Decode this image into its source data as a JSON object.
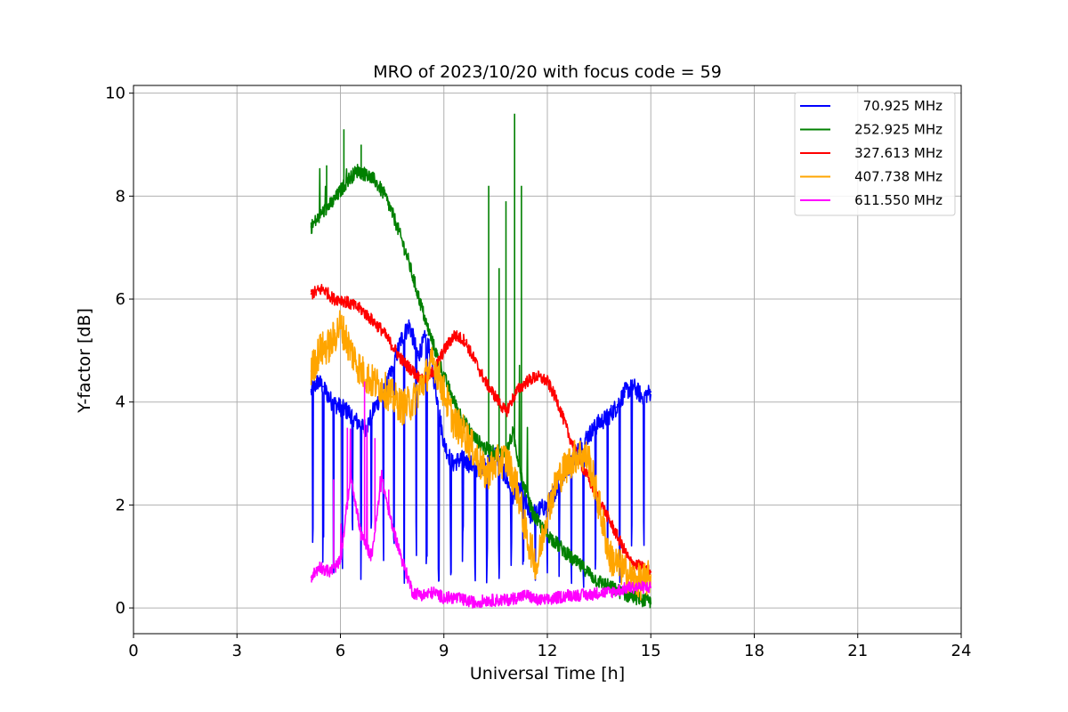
{
  "chart_data": {
    "type": "line",
    "title": "MRO of 2023/10/20 with focus code = 59",
    "xlabel": "Universal Time [h]",
    "ylabel": "Y-factor [dB]",
    "xlim": [
      0,
      24
    ],
    "ylim": [
      -0.5,
      10.15
    ],
    "xticks": [
      0,
      3,
      6,
      9,
      12,
      15,
      18,
      21,
      24
    ],
    "yticks": [
      0,
      2,
      4,
      6,
      8,
      10
    ],
    "grid": true,
    "legend_position": "top-right",
    "series": [
      {
        "name": "70.925 MHz",
        "color": "#0000ff",
        "x": [
          5.15,
          5.35,
          5.5,
          5.75,
          6.0,
          6.25,
          6.5,
          6.75,
          7.0,
          7.25,
          7.5,
          7.75,
          8.0,
          8.25,
          8.5,
          8.75,
          9.0,
          9.25,
          9.5,
          9.75,
          10.0,
          10.25,
          10.5,
          10.75,
          11.0,
          11.25,
          11.5,
          11.75,
          12.0,
          12.25,
          12.5,
          12.75,
          13.0,
          13.25,
          13.5,
          13.75,
          14.0,
          14.25,
          14.5,
          14.75,
          15.0
        ],
        "values": [
          4.2,
          4.4,
          4.3,
          4.0,
          3.9,
          3.8,
          3.6,
          3.5,
          3.9,
          4.2,
          4.6,
          5.2,
          5.5,
          4.9,
          5.3,
          4.3,
          3.2,
          2.8,
          2.9,
          2.8,
          2.7,
          2.8,
          3.0,
          2.6,
          2.2,
          2.3,
          1.8,
          1.9,
          2.0,
          2.3,
          2.6,
          2.9,
          3.2,
          3.4,
          3.6,
          3.7,
          3.9,
          4.2,
          4.3,
          4.1,
          4.2
        ],
        "dips": [
          5.2,
          5.5,
          5.8,
          6.05,
          6.35,
          6.6,
          6.9,
          7.25,
          7.55,
          7.85,
          8.2,
          8.5,
          8.85,
          9.2,
          9.55,
          9.9,
          10.25,
          10.6,
          10.95,
          11.3,
          11.65,
          12.0,
          12.35,
          12.7,
          13.05,
          13.4,
          13.75,
          14.1,
          14.45,
          14.8
        ]
      },
      {
        "name": "252.925 MHz",
        "color": "#008000",
        "x": [
          5.15,
          5.5,
          5.8,
          6.0,
          6.2,
          6.5,
          6.8,
          7.0,
          7.3,
          7.6,
          7.9,
          8.2,
          8.5,
          8.8,
          9.0,
          9.3,
          9.6,
          9.9,
          10.2,
          10.5,
          10.8,
          11.0,
          11.3,
          11.6,
          11.9,
          12.2,
          12.5,
          12.8,
          13.1,
          13.4,
          13.7,
          14.0,
          14.3,
          14.6,
          15.0
        ],
        "values": [
          7.4,
          7.7,
          7.9,
          8.1,
          8.3,
          8.5,
          8.4,
          8.3,
          8.0,
          7.5,
          6.9,
          6.2,
          5.5,
          4.9,
          4.5,
          4.0,
          3.6,
          3.3,
          3.1,
          3.0,
          3.0,
          3.4,
          2.4,
          1.8,
          1.5,
          1.3,
          1.1,
          0.9,
          0.75,
          0.55,
          0.45,
          0.35,
          0.25,
          0.2,
          0.1
        ],
        "spikes": [
          {
            "x": 10.3,
            "y": 8.2
          },
          {
            "x": 10.6,
            "y": 6.6
          },
          {
            "x": 10.8,
            "y": 7.9
          },
          {
            "x": 11.05,
            "y": 9.6
          },
          {
            "x": 11.25,
            "y": 8.2
          },
          {
            "x": 6.1,
            "y": 9.3
          },
          {
            "x": 5.6,
            "y": 8.6
          },
          {
            "x": 6.6,
            "y": 9.0
          }
        ]
      },
      {
        "name": "327.613 MHz",
        "color": "#ff0000",
        "x": [
          5.15,
          5.5,
          5.8,
          6.0,
          6.3,
          6.6,
          6.9,
          7.2,
          7.5,
          7.8,
          8.1,
          8.4,
          8.7,
          9.0,
          9.3,
          9.6,
          9.9,
          10.2,
          10.5,
          10.8,
          11.1,
          11.4,
          11.7,
          12.0,
          12.3,
          12.6,
          12.9,
          13.2,
          13.5,
          13.8,
          14.1,
          14.4,
          14.7,
          15.0
        ],
        "values": [
          6.1,
          6.2,
          6.0,
          6.0,
          5.9,
          5.8,
          5.6,
          5.4,
          5.1,
          4.8,
          4.6,
          4.4,
          4.6,
          5.0,
          5.3,
          5.2,
          4.8,
          4.4,
          4.1,
          3.8,
          4.2,
          4.4,
          4.5,
          4.4,
          4.0,
          3.4,
          2.9,
          2.5,
          2.1,
          1.7,
          1.3,
          0.9,
          0.8,
          0.7
        ]
      },
      {
        "name": "407.738 MHz",
        "color": "#ffa500",
        "x": [
          5.15,
          5.4,
          5.7,
          6.0,
          6.3,
          6.6,
          6.9,
          7.2,
          7.5,
          7.8,
          8.1,
          8.4,
          8.7,
          9.0,
          9.3,
          9.6,
          9.9,
          10.2,
          10.5,
          10.8,
          11.1,
          11.4,
          11.7,
          12.0,
          12.3,
          12.6,
          12.9,
          13.2,
          13.5,
          13.8,
          14.1,
          14.4,
          14.7,
          15.0
        ],
        "values": [
          4.6,
          5.0,
          5.1,
          5.5,
          5.0,
          4.6,
          4.4,
          4.3,
          4.1,
          3.9,
          4.0,
          4.4,
          4.8,
          4.2,
          3.6,
          3.4,
          3.0,
          2.6,
          2.8,
          2.9,
          2.4,
          1.4,
          0.8,
          1.9,
          2.5,
          2.8,
          3.0,
          2.9,
          2.0,
          1.0,
          0.8,
          0.6,
          0.5,
          0.6
        ]
      },
      {
        "name": "611.550 MHz",
        "color": "#ff00ff",
        "x": [
          5.15,
          5.4,
          5.7,
          6.0,
          6.3,
          6.6,
          6.9,
          7.2,
          7.5,
          7.8,
          8.1,
          8.4,
          8.7,
          9.0,
          9.3,
          9.6,
          9.9,
          10.2,
          10.5,
          10.8,
          11.1,
          11.4,
          11.7,
          12.0,
          12.3,
          12.6,
          12.9,
          13.2,
          13.5,
          13.8,
          14.1,
          14.4,
          14.7,
          15.0
        ],
        "values": [
          0.6,
          0.8,
          0.7,
          0.9,
          2.6,
          1.4,
          1.0,
          2.5,
          1.6,
          0.9,
          0.3,
          0.25,
          0.3,
          0.2,
          0.2,
          0.15,
          0.1,
          0.15,
          0.15,
          0.15,
          0.2,
          0.25,
          0.15,
          0.15,
          0.2,
          0.25,
          0.25,
          0.25,
          0.3,
          0.3,
          0.35,
          0.4,
          0.4,
          0.4
        ],
        "spikes": [
          {
            "x": 5.8,
            "y": 2.5
          },
          {
            "x": 6.2,
            "y": 3.5
          },
          {
            "x": 6.7,
            "y": 4.4
          },
          {
            "x": 7.0,
            "y": 3.3
          },
          {
            "x": 7.4,
            "y": 2.3
          }
        ]
      }
    ]
  }
}
